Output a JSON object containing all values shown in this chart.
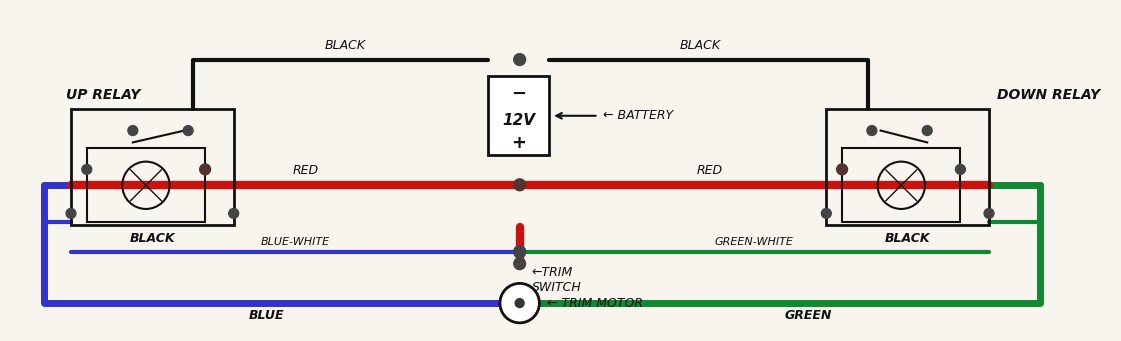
{
  "bg_color": "#f8f5ee",
  "wire_colors": {
    "black": "#111111",
    "red": "#cc1111",
    "blue": "#3333cc",
    "green": "#118833"
  },
  "labels": {
    "up_relay": "UP RELAY",
    "down_relay": "DOWN RELAY",
    "black_top_left": "BLACK",
    "black_top_right": "BLACK",
    "battery": "12V",
    "battery_arrow": "← BATTERY",
    "battery_minus": "−",
    "battery_plus": "+",
    "red_left": "RED",
    "red_right": "RED",
    "black_left": "BLACK",
    "black_right": "BLACK",
    "blue_white": "BLUE-WHITE",
    "green_white": "GREEN-WHITE",
    "blue": "BLUE",
    "green": "GREEN",
    "trim_switch": "←TRIM\nSWITCH",
    "trim_motor": "← TRIM MOTOR"
  },
  "fig_width": 11.21,
  "fig_height": 3.41
}
